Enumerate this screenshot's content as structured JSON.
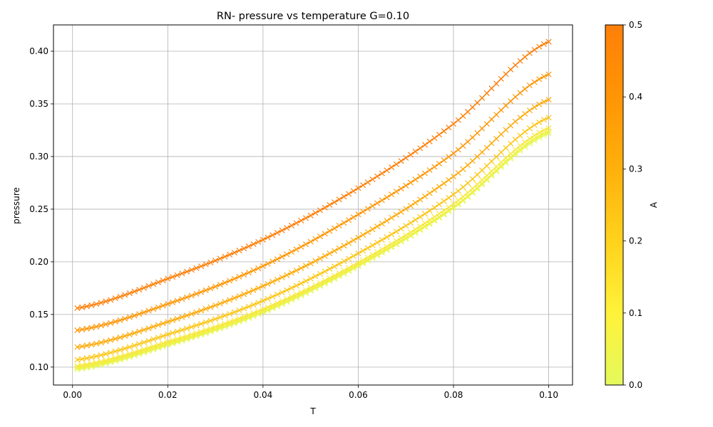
{
  "chart_data": {
    "type": "line",
    "title": "RN- pressure vs temperature G=0.10",
    "xlabel": "T",
    "ylabel": "pressure",
    "xlim": [
      -0.004,
      0.105
    ],
    "ylim": [
      0.083,
      0.425
    ],
    "xticks": [
      0.0,
      0.02,
      0.04,
      0.06,
      0.08,
      0.1
    ],
    "xtick_labels": [
      "0.00",
      "0.02",
      "0.04",
      "0.06",
      "0.08",
      "0.10"
    ],
    "yticks": [
      0.1,
      0.15,
      0.2,
      0.25,
      0.3,
      0.35,
      0.4
    ],
    "ytick_labels": [
      "0.10",
      "0.15",
      "0.20",
      "0.25",
      "0.30",
      "0.35",
      "0.40"
    ],
    "grid": true,
    "marker": "x",
    "x_range": [
      0.001,
      0.1
    ],
    "points_per_series": 100,
    "series": [
      {
        "A": 0.0,
        "color": "#e4f95c",
        "x": [
          0.001,
          0.02,
          0.04,
          0.06,
          0.08,
          0.1
        ],
        "y": [
          0.098,
          0.121,
          0.152,
          0.196,
          0.251,
          0.322
        ]
      },
      {
        "A": 0.05,
        "color": "#eef34a",
        "x": [
          0.001,
          0.02,
          0.04,
          0.06,
          0.08,
          0.1
        ],
        "y": [
          0.0995,
          0.122,
          0.153,
          0.197,
          0.252,
          0.324
        ]
      },
      {
        "A": 0.1,
        "color": "#f7e83a",
        "x": [
          0.001,
          0.02,
          0.04,
          0.06,
          0.08,
          0.1
        ],
        "y": [
          0.101,
          0.124,
          0.155,
          0.199,
          0.255,
          0.327
        ]
      },
      {
        "A": 0.2,
        "color": "#fcc615",
        "x": [
          0.001,
          0.02,
          0.04,
          0.06,
          0.08,
          0.1
        ],
        "y": [
          0.107,
          0.131,
          0.163,
          0.208,
          0.264,
          0.337
        ]
      },
      {
        "A": 0.3,
        "color": "#fdaa08",
        "x": [
          0.001,
          0.02,
          0.04,
          0.06,
          0.08,
          0.1
        ],
        "y": [
          0.119,
          0.143,
          0.177,
          0.223,
          0.281,
          0.354
        ]
      },
      {
        "A": 0.4,
        "color": "#fe9605",
        "x": [
          0.001,
          0.02,
          0.04,
          0.06,
          0.08,
          0.1
        ],
        "y": [
          0.135,
          0.16,
          0.196,
          0.245,
          0.303,
          0.378
        ]
      },
      {
        "A": 0.5,
        "color": "#fd7f09",
        "x": [
          0.001,
          0.02,
          0.04,
          0.06,
          0.08,
          0.1
        ],
        "y": [
          0.156,
          0.184,
          0.221,
          0.27,
          0.331,
          0.409
        ]
      }
    ],
    "colorbar": {
      "label": "A",
      "range": [
        0.0,
        0.5
      ],
      "ticks": [
        0.0,
        0.1,
        0.2,
        0.3,
        0.4,
        0.5
      ],
      "tick_labels": [
        "0.0",
        "0.1",
        "0.2",
        "0.3",
        "0.4",
        "0.5"
      ],
      "colors": [
        "#e4f95c",
        "#fff23a",
        "#ffd21c",
        "#ffb00c",
        "#ff9505",
        "#ff7f09"
      ]
    }
  }
}
